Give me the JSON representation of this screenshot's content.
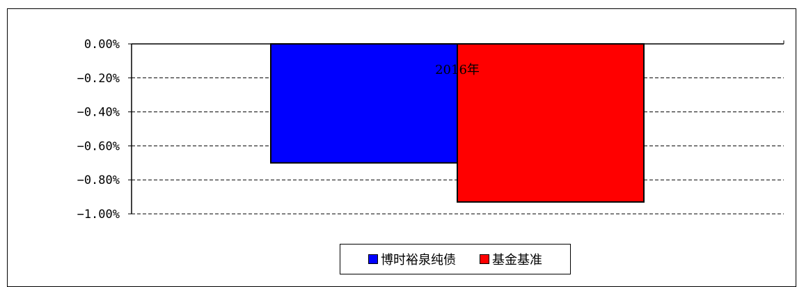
{
  "chart_data": {
    "type": "bar",
    "categories": [
      "2016年"
    ],
    "series": [
      {
        "name": "博时裕泉纯债",
        "values": [
          -0.7
        ],
        "color": "#0000ff"
      },
      {
        "name": "基金基准",
        "values": [
          -0.93
        ],
        "color": "#ff0000"
      }
    ],
    "y_ticks": [
      "0.00%",
      "-0.20%",
      "-0.40%",
      "-0.60%",
      "-0.80%",
      "-1.00%"
    ],
    "ylim": [
      -1.0,
      0.0
    ],
    "unit": "%",
    "grid": true,
    "legend_position": "bottom"
  }
}
